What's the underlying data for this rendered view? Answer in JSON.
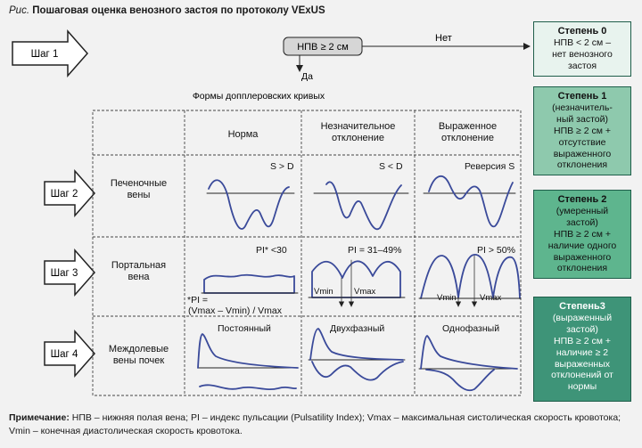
{
  "figure": {
    "caption_prefix": "Рис.",
    "caption_title": "Пошаговая оценка венозного застоя по протоколу VExUS"
  },
  "steps": [
    {
      "label": "Шаг 1"
    },
    {
      "label": "Шаг 2"
    },
    {
      "label": "Шаг 3"
    },
    {
      "label": "Шаг 4"
    }
  ],
  "decision": {
    "box": "НПВ ≥ 2 см",
    "no_label": "Нет",
    "yes_label": "Да"
  },
  "grid": {
    "heading": "Формы допплеровских кривых",
    "col_headers": [
      "Норма",
      "Незначительное\nотклонение",
      "Выраженное\nотклонение"
    ],
    "row_headers": [
      "Печеночные\nвены",
      "Портальная\nвена",
      "Междолевые\nвены почек"
    ]
  },
  "hepatic": {
    "labels": [
      "S > D",
      "S < D",
      "Реверсия S"
    ]
  },
  "portal": {
    "labels": [
      "PI* <30",
      "PI = 31–49%",
      "PI > 50%"
    ],
    "vmin": "Vmin",
    "vmax": "Vmax",
    "footnote_line1": "*PI =",
    "footnote_line2": "(Vmax – Vmin) / Vmax"
  },
  "renal": {
    "labels": [
      "Постоянный",
      "Двухфазный",
      "Однофазный"
    ]
  },
  "grades": [
    {
      "title": "Степень 0",
      "body": "НПВ < 2 см –\nнет венозного\nзастоя"
    },
    {
      "title": "Степень 1",
      "body": "(незначитель-\nный застой)\nНПВ ≥ 2 см +\nотсутствие\nвыраженного\nотклонения"
    },
    {
      "title": "Степень 2",
      "body": "(умеренный\nзастой)\nНПВ ≥ 2 см +\nналичие одного\nвыраженного\nотклонения"
    },
    {
      "title": "Степень3",
      "body": "(выраженный\nзастой)\nНПВ ≥ 2 см +\nналичие ≥ 2\nвыраженных\nотклонений от\nнормы"
    }
  ],
  "note": {
    "label": "Примечание:",
    "text": " НПВ – нижняя полая вена; PI – индекс пульсации (Pulsatility Index); Vmax – максимальная систолическая скорость кровотока; Vmin – конечная диастолическая скорость кровотока."
  },
  "colors": {
    "wave": "#3a4a9a",
    "grade0": "#e8f3ee",
    "grade1": "#8ec9ad",
    "grade2": "#5eb58e",
    "grade3": "#3e9478"
  }
}
